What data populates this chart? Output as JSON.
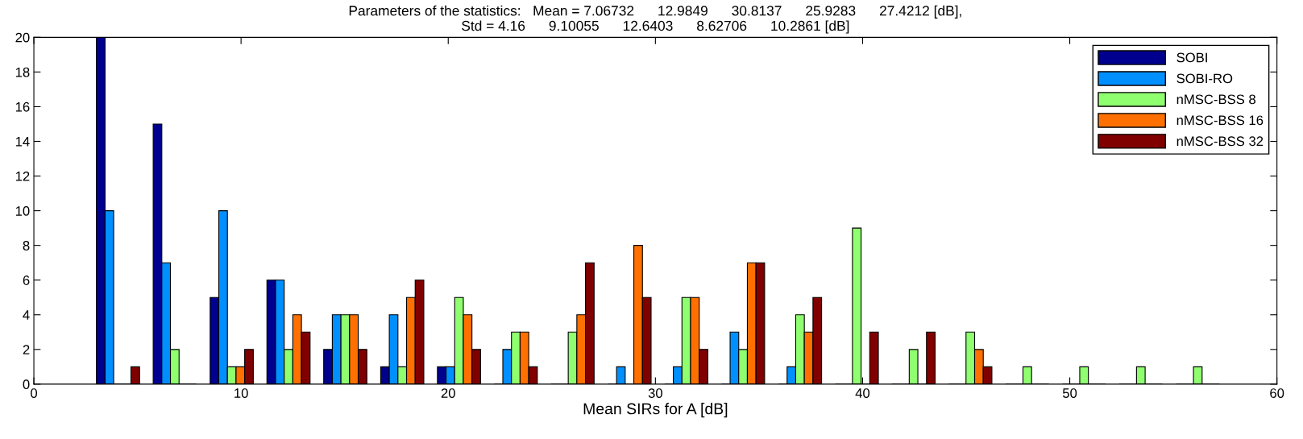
{
  "chart_data": {
    "type": "bar",
    "title": "Parameters of the statistics:   Mean = 7.06732      12.9849      30.8137      25.9283      27.4212 [dB],\nStd = 4.16      9.10055      12.6403      8.62706      10.2861 [dB]",
    "xlabel": "Mean SIRs for A [dB]",
    "x": [
      4.06,
      6.8,
      9.55,
      12.29,
      15.03,
      17.78,
      20.52,
      23.26,
      26.0,
      28.75,
      31.49,
      34.23,
      36.98,
      39.72,
      42.46,
      45.2,
      47.95,
      50.69,
      53.43,
      56.18
    ],
    "series": [
      {
        "name": "SOBI",
        "color": "#00008f",
        "values": [
          20,
          15,
          5,
          6,
          2,
          1,
          1,
          0,
          0,
          0,
          0,
          0,
          0,
          0,
          0,
          0,
          0,
          0,
          0,
          0
        ]
      },
      {
        "name": "SOBI-RO",
        "color": "#008fff",
        "values": [
          10,
          7,
          10,
          6,
          4,
          4,
          1,
          2,
          0,
          1,
          1,
          3,
          1,
          0,
          0,
          0,
          0,
          0,
          0,
          0
        ]
      },
      {
        "name": "nMSC-BSS 8",
        "color": "#8fff70",
        "values": [
          0,
          2,
          1,
          2,
          4,
          1,
          5,
          3,
          3,
          0,
          5,
          2,
          4,
          9,
          2,
          3,
          1,
          1,
          1,
          1
        ]
      },
      {
        "name": "nMSC-BSS 16",
        "color": "#ff7000",
        "values": [
          0,
          0,
          1,
          4,
          4,
          5,
          4,
          3,
          4,
          8,
          5,
          7,
          3,
          0,
          0,
          2,
          0,
          0,
          0,
          0
        ]
      },
      {
        "name": "nMSC-BSS 32",
        "color": "#800000",
        "values": [
          1,
          0,
          2,
          3,
          2,
          6,
          2,
          1,
          7,
          5,
          2,
          7,
          5,
          3,
          3,
          1,
          0,
          0,
          0,
          0
        ]
      }
    ],
    "xlim": [
      0,
      60
    ],
    "xticks": [
      0,
      10,
      20,
      30,
      40,
      50,
      60
    ],
    "ylim": [
      0,
      20
    ],
    "yticks": [
      0,
      2,
      4,
      6,
      8,
      10,
      12,
      14,
      16,
      18,
      20
    ],
    "grid": false,
    "legend": "top right"
  }
}
